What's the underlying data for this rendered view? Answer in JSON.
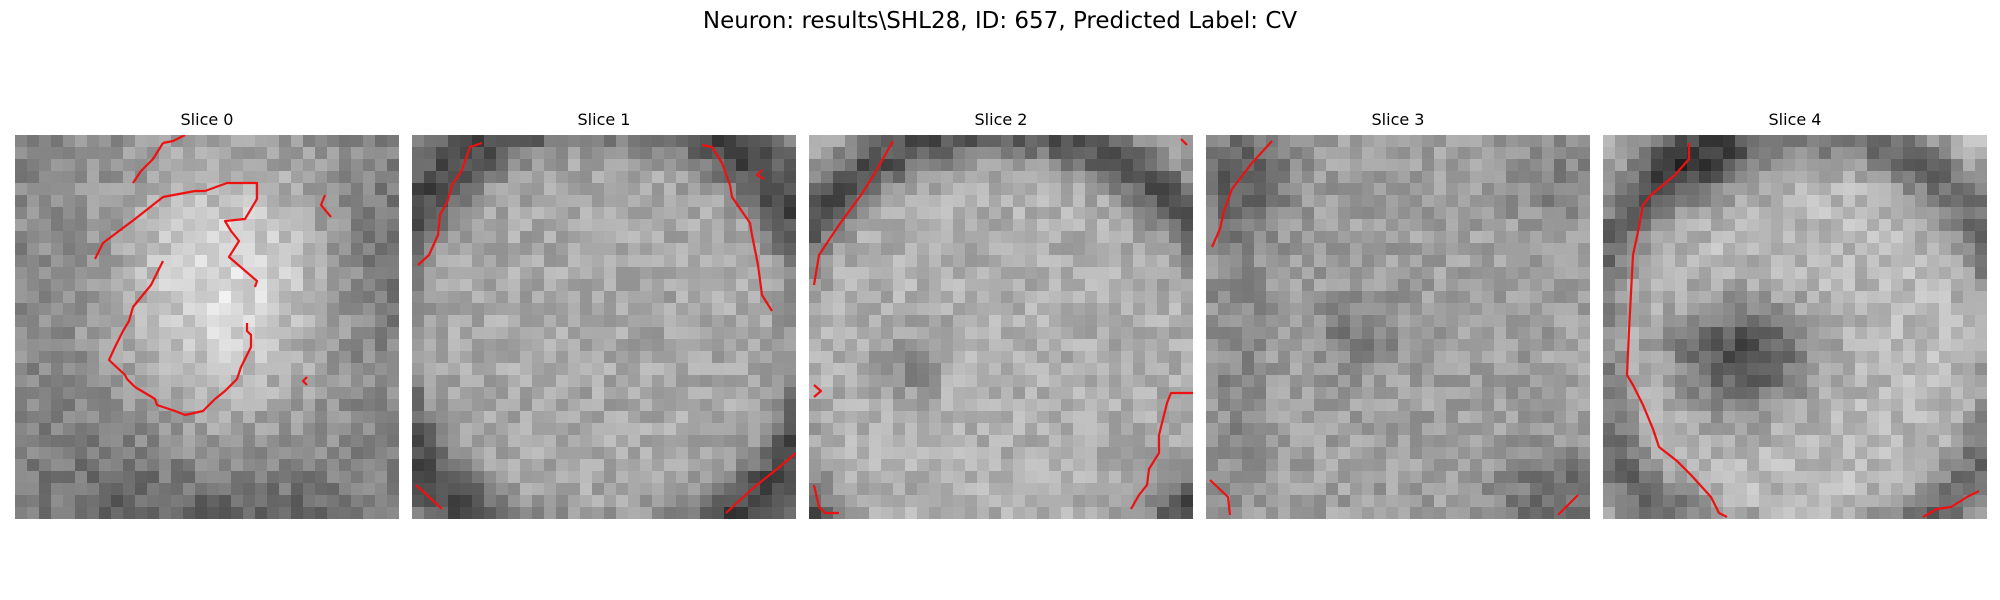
{
  "figure": {
    "title": "Neuron: results\\SHL28, ID: 657, Predicted Label: CV"
  },
  "panels": [
    {
      "label": "Slice 0"
    },
    {
      "label": "Slice 1"
    },
    {
      "label": "Slice 2"
    },
    {
      "label": "Slice 3"
    },
    {
      "label": "Slice 4"
    }
  ],
  "colors": {
    "contour": "#ee1111",
    "background": "#ffffff"
  }
}
